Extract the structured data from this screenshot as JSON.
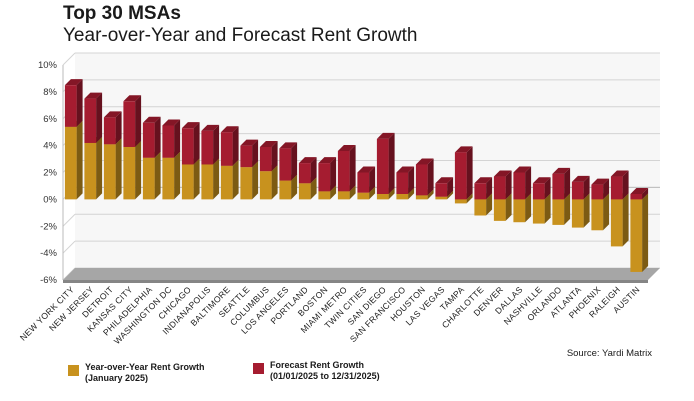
{
  "title": "Top 30 MSAs",
  "subtitle": "Year-over-Year and Forecast Rent Growth",
  "source": "Source: Yardi Matrix",
  "colors": {
    "yoy": "#c8921e",
    "forecast": "#a51c30",
    "floor": "#a6a6a6",
    "wall": "#f7f7f7",
    "grid": "#d4d4d4"
  },
  "legend": {
    "yoy": {
      "line1": "Year-over-Year Rent Growth",
      "line2": "(January 2025)"
    },
    "forecast": {
      "line1": "Forecast Rent Growth",
      "line2": "(01/01/2025 to 12/31/2025)"
    }
  },
  "chart_data": {
    "type": "bar",
    "stacked": true,
    "ylim": [
      -6,
      10
    ],
    "yticks": [
      "10%",
      "8%",
      "6%",
      "4%",
      "2%",
      "0%",
      "-2%",
      "-4%",
      "-6%"
    ],
    "categories": [
      "NEW YORK CITY",
      "NEW JERSEY",
      "DETROIT",
      "KANSAS CITY",
      "PHILADELPHIA",
      "WASHINGTON DC",
      "CHICAGO",
      "INDIANAPOLIS",
      "BALTIMORE",
      "SEATTLE",
      "COLUMBUS",
      "LOS ANGELES",
      "PORTLAND",
      "BOSTON",
      "MIAMI METRO",
      "TWIN CITIES",
      "SAN DIEGO",
      "SAN FRANCISCO",
      "HOUSTON",
      "LAS VEGAS",
      "TAMPA",
      "CHARLOTTE",
      "DENVER",
      "DALLAS",
      "NASHVILLE",
      "ORLANDO",
      "ATLANTA",
      "PHOENIX",
      "RALEIGH",
      "AUSTIN"
    ],
    "series": [
      {
        "name": "Year-over-Year Rent Growth (January 2025)",
        "values": [
          5.4,
          4.2,
          4.1,
          3.9,
          3.1,
          3.1,
          2.6,
          2.6,
          2.5,
          2.4,
          2.1,
          1.4,
          1.2,
          0.6,
          0.6,
          0.5,
          0.4,
          0.4,
          0.3,
          0.2,
          -0.3,
          -1.2,
          -1.6,
          -1.7,
          -1.8,
          -1.9,
          -2.1,
          -2.3,
          -3.5,
          -5.4
        ]
      },
      {
        "name": "Forecast Rent Growth (01/01/2025 to 12/31/2025)",
        "values": [
          3.1,
          3.3,
          2.0,
          3.4,
          2.6,
          2.4,
          2.7,
          2.5,
          2.5,
          1.6,
          1.8,
          2.4,
          1.5,
          2.1,
          3.0,
          1.5,
          4.1,
          1.6,
          2.3,
          1.0,
          3.5,
          1.2,
          1.7,
          2.0,
          1.2,
          1.9,
          1.3,
          1.1,
          1.7,
          0.4
        ]
      }
    ]
  }
}
